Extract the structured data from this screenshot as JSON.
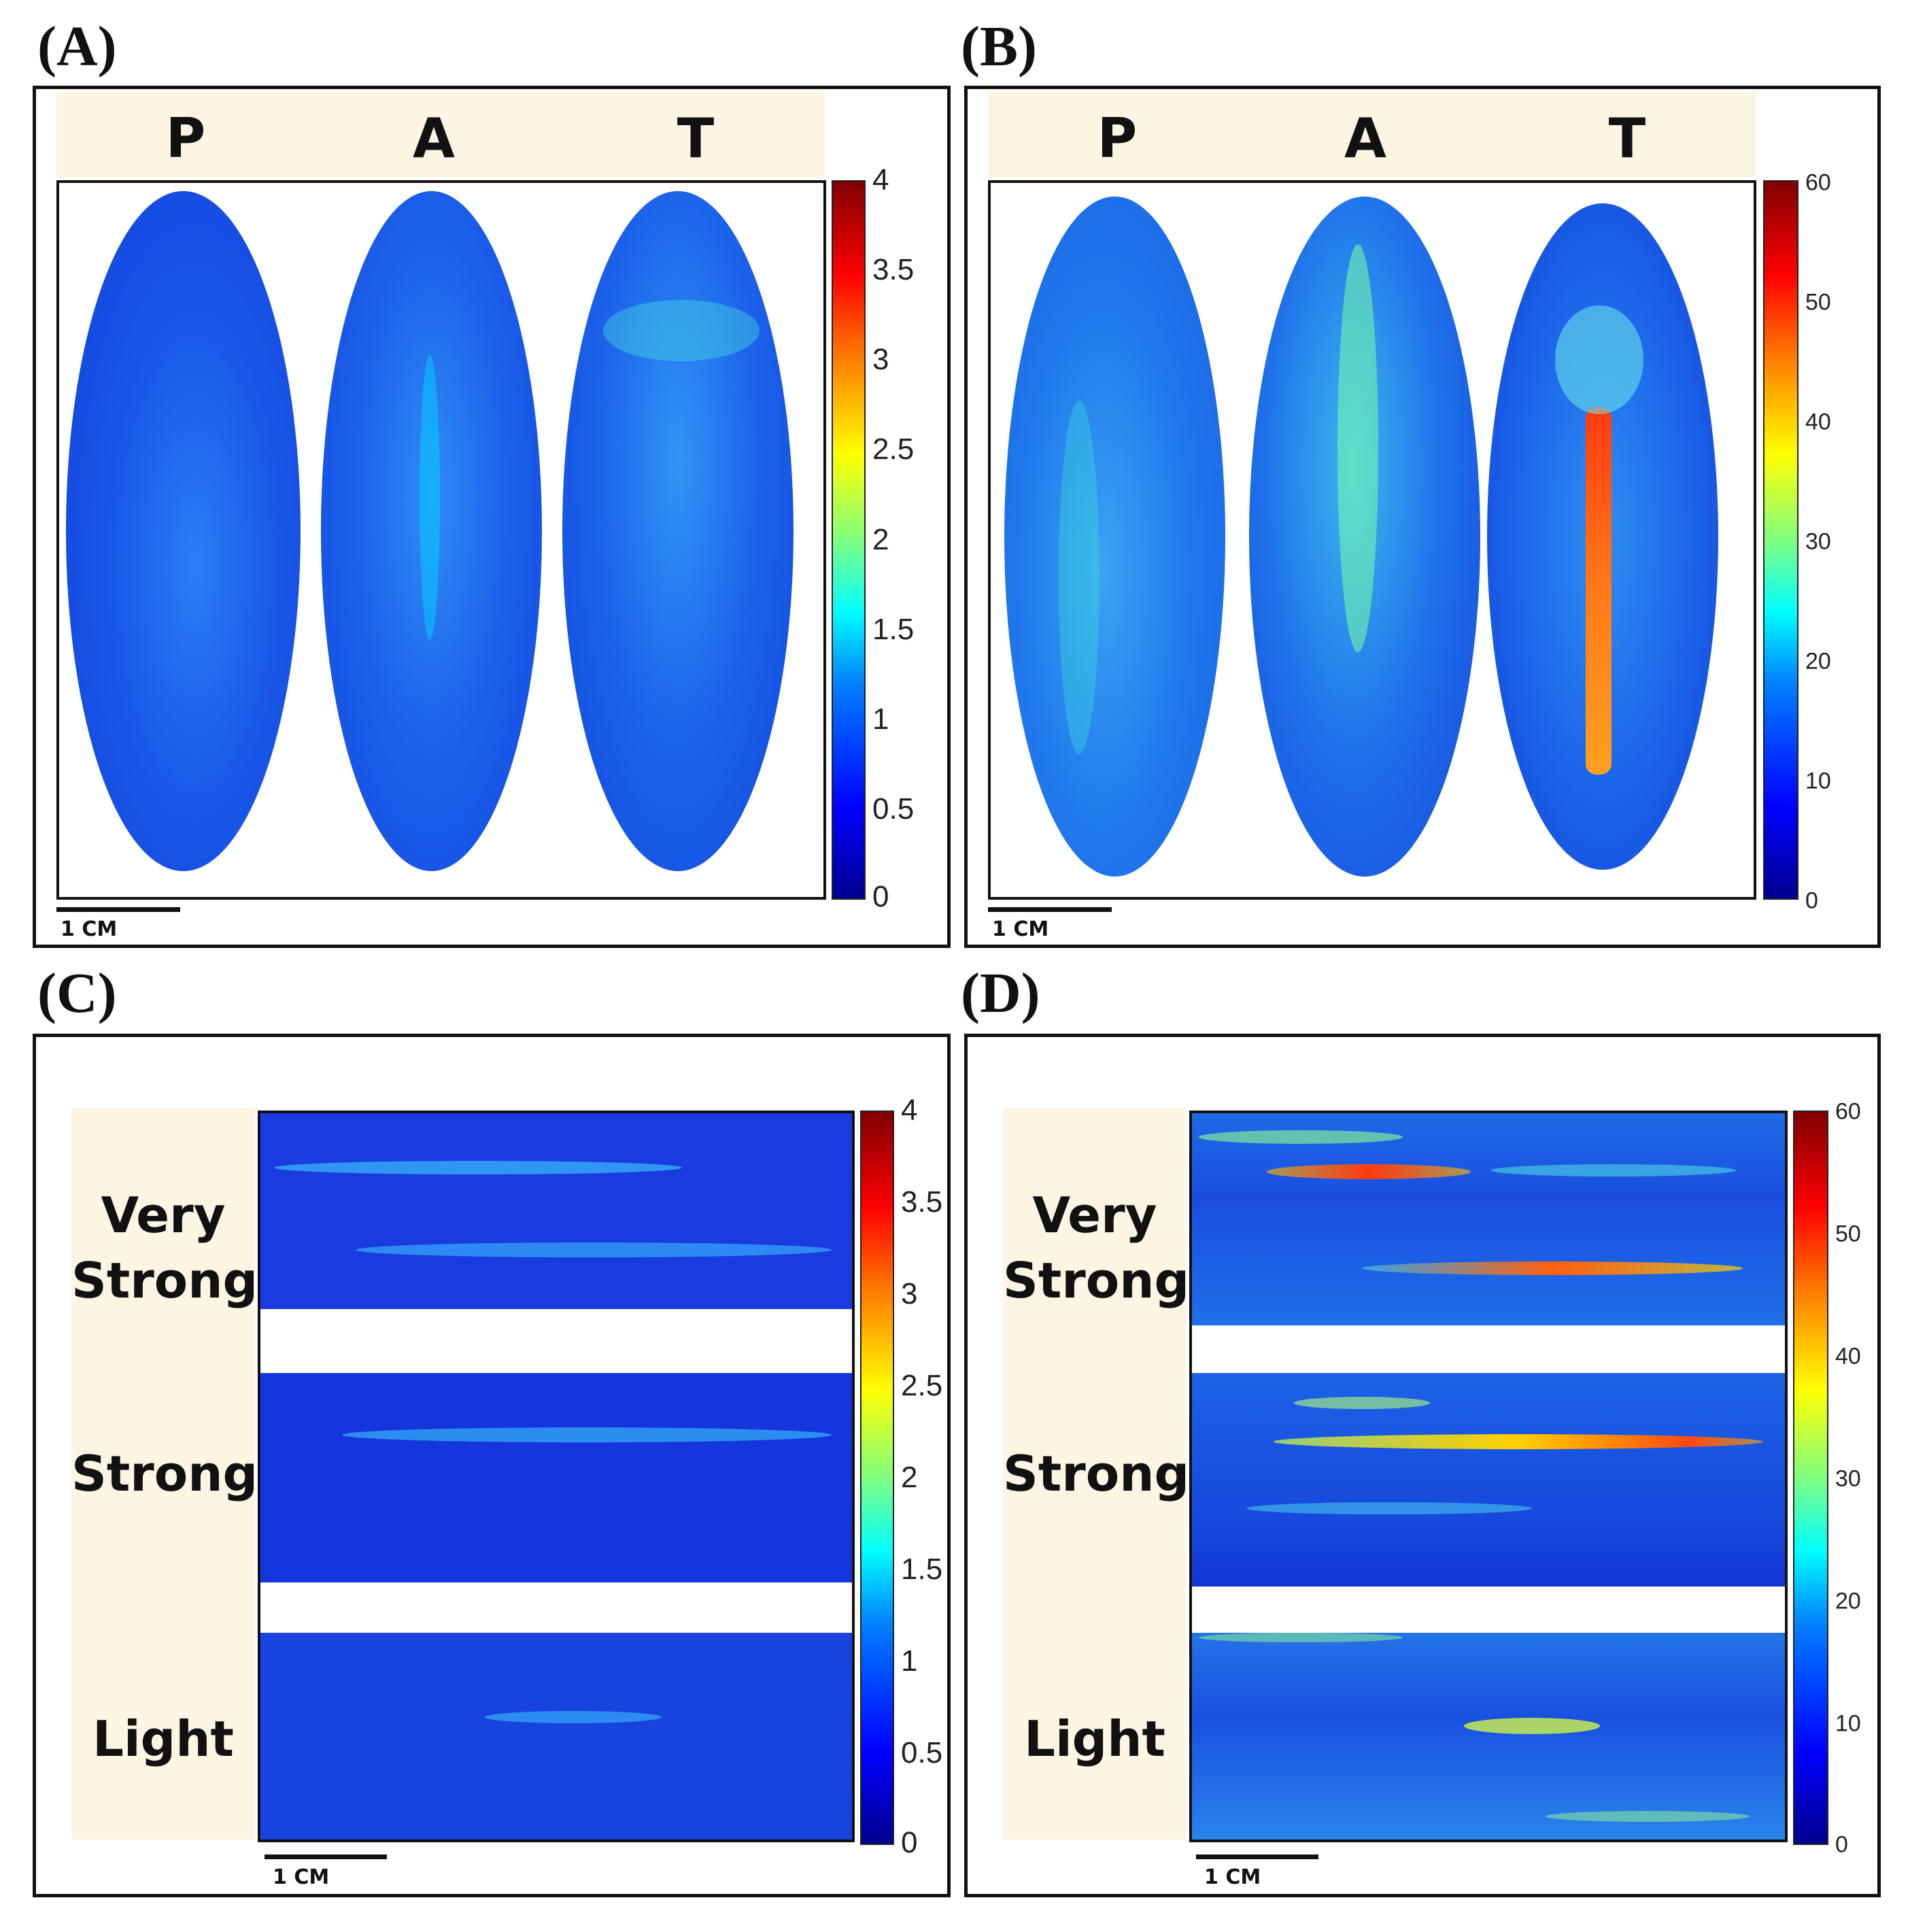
{
  "chart_data": [
    {
      "panel": "(A)",
      "type": "heatmap",
      "columns": [
        "P",
        "A",
        "T"
      ],
      "colorbar": {
        "min": 0,
        "max": 4,
        "ticks": [
          "4",
          "3.5",
          "3",
          "2.5",
          "2",
          "1.5",
          "1",
          "0.5",
          "0"
        ]
      },
      "scale_bar": "1 CM"
    },
    {
      "panel": "(B)",
      "type": "heatmap",
      "columns": [
        "P",
        "A",
        "T"
      ],
      "colorbar": {
        "min": 0,
        "max": 60,
        "ticks": [
          "60",
          "50",
          "40",
          "30",
          "20",
          "10",
          "0"
        ]
      },
      "scale_bar": "1 CM"
    },
    {
      "panel": "(C)",
      "type": "heatmap",
      "rows": [
        "Very Strong",
        "Strong",
        "Light"
      ],
      "colorbar": {
        "min": 0,
        "max": 4,
        "ticks": [
          "4",
          "3.5",
          "3",
          "2.5",
          "2",
          "1.5",
          "1",
          "0.5",
          "0"
        ]
      },
      "scale_bar": "1 CM"
    },
    {
      "panel": "(D)",
      "type": "heatmap",
      "rows": [
        "Very Strong",
        "Strong",
        "Light"
      ],
      "colorbar": {
        "min": 0,
        "max": 60,
        "ticks": [
          "60",
          "50",
          "40",
          "30",
          "20",
          "10",
          "0"
        ]
      },
      "scale_bar": "1 CM"
    }
  ],
  "colors": {
    "header_bg": "#fdf5e4",
    "map_dark": "#0a2ad8",
    "map_mid": "#1b6ff0"
  }
}
